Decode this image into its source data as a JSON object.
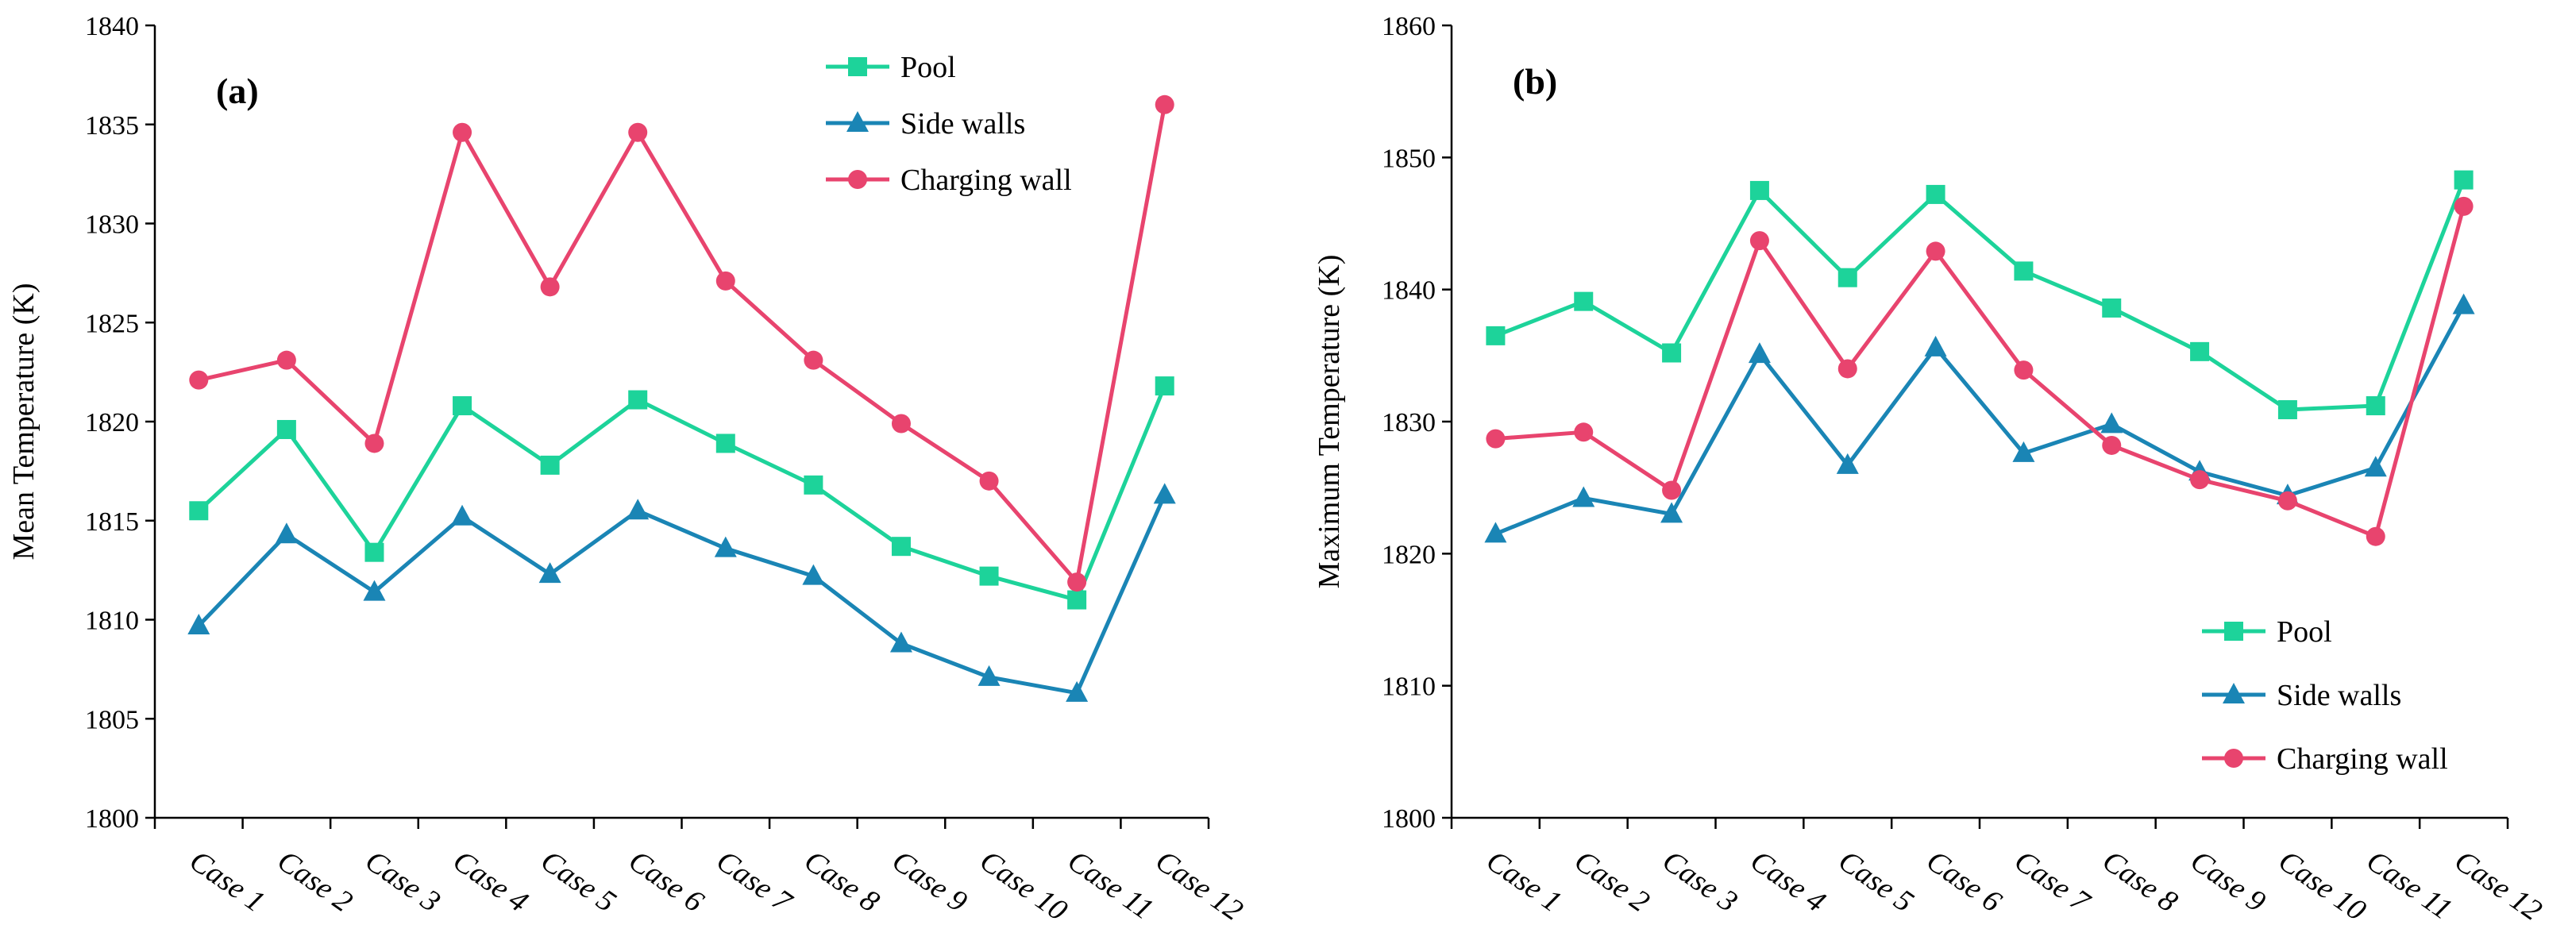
{
  "chart_data": [
    {
      "type": "line",
      "panel_label": "(a)",
      "ylabel": "Mean Temperature (K)",
      "xlabel": "",
      "ylim": [
        1800,
        1840
      ],
      "yticks": [
        "1800",
        "1805",
        "1810",
        "1815",
        "1820",
        "1825",
        "1830",
        "1835",
        "1840"
      ],
      "grid": false,
      "legend_position": "top-center",
      "categories": [
        "Case 1",
        "Case 2",
        "Case 3",
        "Case 4",
        "Case 5",
        "Case 6",
        "Case 7",
        "Case 8",
        "Case 9",
        "Case 10",
        "Case 11",
        "Case 12"
      ],
      "series": [
        {
          "name": "Pool",
          "color": "#1dd39a",
          "marker": "square",
          "values": [
            1815.5,
            1819.6,
            1813.4,
            1820.8,
            1817.8,
            1821.1,
            1818.9,
            1816.8,
            1813.7,
            1812.2,
            1811.0,
            1821.8
          ]
        },
        {
          "name": "Side walls",
          "color": "#1a85b5",
          "marker": "triangle",
          "values": [
            1809.7,
            1814.3,
            1811.4,
            1815.2,
            1812.3,
            1815.5,
            1813.6,
            1812.2,
            1808.8,
            1807.1,
            1806.3,
            1816.3
          ]
        },
        {
          "name": "Charging wall",
          "color": "#e8446e",
          "marker": "circle",
          "values": [
            1822.1,
            1823.1,
            1818.9,
            1834.6,
            1826.8,
            1834.6,
            1827.1,
            1823.1,
            1819.9,
            1817.0,
            1811.9,
            1836.0
          ]
        }
      ]
    },
    {
      "type": "line",
      "panel_label": "(b)",
      "ylabel": "Maximum Temperature (K)",
      "xlabel": "",
      "ylim": [
        1800,
        1860
      ],
      "yticks": [
        "1800",
        "1810",
        "1820",
        "1830",
        "1840",
        "1850",
        "1860"
      ],
      "grid": false,
      "legend_position": "bottom-right",
      "categories": [
        "Case 1",
        "Case 2",
        "Case 3",
        "Case 4",
        "Case 5",
        "Case 6",
        "Case 7",
        "Case 8",
        "Case 9",
        "Case 10",
        "Case 11",
        "Case 12"
      ],
      "series": [
        {
          "name": "Pool",
          "color": "#1dd39a",
          "marker": "square",
          "values": [
            1836.5,
            1839.1,
            1835.2,
            1847.5,
            1840.9,
            1847.2,
            1841.4,
            1838.6,
            1835.3,
            1830.9,
            1831.2,
            1848.3
          ]
        },
        {
          "name": "Side walls",
          "color": "#1a85b5",
          "marker": "triangle",
          "values": [
            1821.5,
            1824.2,
            1823.0,
            1835.1,
            1826.7,
            1835.6,
            1827.6,
            1829.8,
            1826.2,
            1824.4,
            1826.5,
            1838.8
          ]
        },
        {
          "name": "Charging wall",
          "color": "#e8446e",
          "marker": "circle",
          "values": [
            1828.7,
            1829.2,
            1824.8,
            1843.7,
            1834.0,
            1842.9,
            1833.9,
            1828.2,
            1825.6,
            1824.0,
            1821.3,
            1846.3
          ]
        }
      ]
    }
  ]
}
